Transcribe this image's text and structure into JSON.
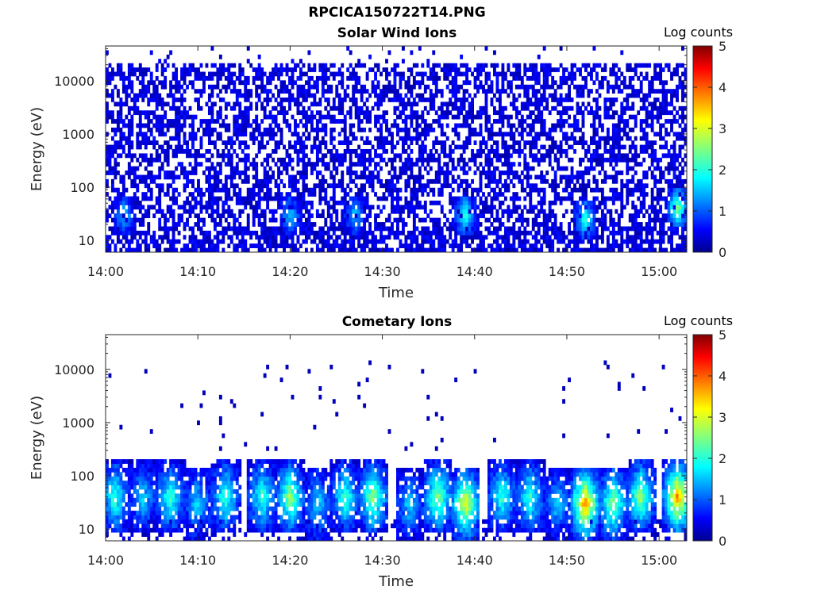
{
  "figure": {
    "title": "RPCICA150722T14.PNG"
  },
  "chart_data": [
    {
      "type": "heatmap",
      "title": "Solar Wind Ions",
      "xlabel": "Time",
      "ylabel": "Energy (eV)",
      "x_ticks": [
        "14:00",
        "14:10",
        "14:20",
        "14:30",
        "14:40",
        "14:50",
        "15:00"
      ],
      "y_ticks": [
        "10",
        "100",
        "1000",
        "10000"
      ],
      "y_scale": "log",
      "x_range": [
        "14:00",
        "15:03"
      ],
      "y_range_eV": [
        6,
        45000
      ],
      "colorbar": {
        "label": "Log counts",
        "range": [
          0,
          5
        ],
        "ticks": [
          "0",
          "1",
          "2",
          "3",
          "4",
          "5"
        ],
        "colormap": "jet"
      },
      "background": "#ffffff",
      "features": {
        "widespread_low_counts_eV": [
          20,
          20000
        ],
        "hotspots": [
          {
            "time": "14:02",
            "energy_eV": 30,
            "log_counts": 1.5
          },
          {
            "time": "14:20",
            "energy_eV": 30,
            "log_counts": 1.5
          },
          {
            "time": "14:27",
            "energy_eV": 30,
            "log_counts": 1.5
          },
          {
            "time": "14:39",
            "energy_eV": 30,
            "log_counts": 2.0
          },
          {
            "time": "14:52",
            "energy_eV": 25,
            "log_counts": 2.0
          },
          {
            "time": "15:02",
            "energy_eV": 40,
            "log_counts": 2.5
          }
        ]
      }
    },
    {
      "type": "heatmap",
      "title": "Cometary Ions",
      "xlabel": "Time",
      "ylabel": "Energy (eV)",
      "x_ticks": [
        "14:00",
        "14:10",
        "14:20",
        "14:30",
        "14:40",
        "14:50",
        "15:00"
      ],
      "y_ticks": [
        "10",
        "100",
        "1000",
        "10000"
      ],
      "y_scale": "log",
      "x_range": [
        "14:00",
        "15:03"
      ],
      "y_range_eV": [
        6,
        45000
      ],
      "colorbar": {
        "label": "Log counts",
        "range": [
          0,
          5
        ],
        "ticks": [
          "0",
          "1",
          "2",
          "3",
          "4",
          "5"
        ],
        "colormap": "jet"
      },
      "background": "#ffffff",
      "features": {
        "sparse_points_eV": [
          300,
          16000
        ],
        "bursts": [
          {
            "time": "14:01",
            "energy_eV": 40,
            "log_counts": 2.0
          },
          {
            "time": "14:04",
            "energy_eV": 40,
            "log_counts": 1.5
          },
          {
            "time": "14:07",
            "energy_eV": 40,
            "log_counts": 2.0
          },
          {
            "time": "14:10",
            "energy_eV": 30,
            "log_counts": 1.5
          },
          {
            "time": "14:13",
            "energy_eV": 40,
            "log_counts": 2.0
          },
          {
            "time": "14:17",
            "energy_eV": 40,
            "log_counts": 2.0
          },
          {
            "time": "14:20",
            "energy_eV": 40,
            "log_counts": 2.5
          },
          {
            "time": "14:23",
            "energy_eV": 30,
            "log_counts": 1.5
          },
          {
            "time": "14:26",
            "energy_eV": 40,
            "log_counts": 2.0
          },
          {
            "time": "14:29",
            "energy_eV": 40,
            "log_counts": 2.5
          },
          {
            "time": "14:33",
            "energy_eV": 30,
            "log_counts": 1.5
          },
          {
            "time": "14:36",
            "energy_eV": 40,
            "log_counts": 2.5
          },
          {
            "time": "14:39",
            "energy_eV": 30,
            "log_counts": 3.0
          },
          {
            "time": "14:43",
            "energy_eV": 40,
            "log_counts": 2.0
          },
          {
            "time": "14:46",
            "energy_eV": 40,
            "log_counts": 2.0
          },
          {
            "time": "14:49",
            "energy_eV": 30,
            "log_counts": 1.5
          },
          {
            "time": "14:52",
            "energy_eV": 30,
            "log_counts": 3.5
          },
          {
            "time": "14:55",
            "energy_eV": 30,
            "log_counts": 2.5
          },
          {
            "time": "14:58",
            "energy_eV": 40,
            "log_counts": 2.5
          },
          {
            "time": "15:02",
            "energy_eV": 40,
            "log_counts": 3.5
          }
        ]
      }
    }
  ]
}
